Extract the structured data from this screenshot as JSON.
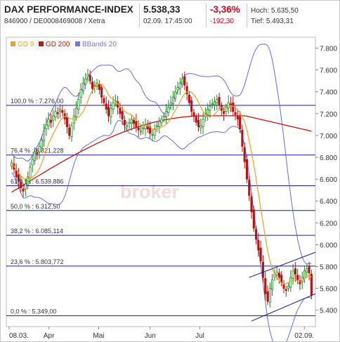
{
  "header": {
    "title": "DAX PERFORMANCE-INDEX",
    "subtitle": "846900 / DE0008469008 / Xetra",
    "price": "5.538,33",
    "datetime": "02.09. 17:45:00",
    "change_pct": "-3,36%",
    "change_abs": "-192,30",
    "high": "Hoch: 5.635,50",
    "low": "Tief: 5.493,31"
  },
  "legend": [
    {
      "label": "GD 9",
      "color": "#f0a020"
    },
    {
      "label": "GD 200",
      "color": "#cc1111"
    },
    {
      "label": "BBands 20",
      "color": "#7777dd"
    }
  ],
  "watermark": "broker",
  "colors": {
    "up": "#1f8a1f",
    "down": "#b81313",
    "fib": "#1a1a9a",
    "bband": "#6a6ad8",
    "ma9": "#f0a020",
    "ma200": "#cc1111"
  },
  "chart_data": {
    "type": "candlestick",
    "y_axis_side": "right",
    "ylim": [
      5250,
      7900
    ],
    "y_ticks": [
      "5.400",
      "5.600",
      "5.800",
      "6.000",
      "6.200",
      "6.400",
      "6.600",
      "6.800",
      "7.000",
      "7.200",
      "7.400",
      "7.600",
      "7.800"
    ],
    "y_tick_values": [
      5400,
      5600,
      5800,
      6000,
      6200,
      6400,
      6600,
      6800,
      7000,
      7200,
      7400,
      7600,
      7800
    ],
    "x_labels": [
      "08.03.",
      "Apr",
      "Mai",
      "Jun",
      "Jul",
      "02.09."
    ],
    "x_label_days": [
      0,
      24,
      54,
      85,
      115,
      178
    ],
    "total_days": 183,
    "fibonacci": [
      {
        "label": "100,0 % : 7.276,00",
        "value": 7276.0
      },
      {
        "label": "76,4 % : 6.821,228",
        "value": 6821.228
      },
      {
        "label": "61,8 % : 6.539,886",
        "value": 6539.886
      },
      {
        "label": "50,0 % : 6.312,50",
        "value": 6312.5
      },
      {
        "label": "38,2 % : 6.085,114",
        "value": 6085.114
      },
      {
        "label": "23,6 % : 5.803,772",
        "value": 5803.772
      },
      {
        "label": "0,0 % : 5.349,00",
        "value": 5349.0
      }
    ],
    "closes": [
      6750,
      6690,
      6620,
      6580,
      6520,
      6490,
      6555,
      6620,
      6710,
      6780,
      6850,
      6830,
      6900,
      6960,
      7040,
      7100,
      7150,
      7120,
      7180,
      7220,
      7200,
      7240,
      7210,
      7150,
      7080,
      7000,
      7090,
      7180,
      7250,
      7330,
      7420,
      7480,
      7520,
      7560,
      7500,
      7430,
      7460,
      7480,
      7420,
      7350,
      7300,
      7240,
      7180,
      7250,
      7300,
      7320,
      7260,
      7200,
      7150,
      7100,
      7090,
      7120,
      7150,
      7110,
      7080,
      7050,
      7040,
      7070,
      7100,
      7060,
      7020,
      7010,
      7060,
      7090,
      7130,
      7150,
      7180,
      7220,
      7260,
      7300,
      7350,
      7400,
      7440,
      7480,
      7520,
      7460,
      7380,
      7300,
      7220,
      7180,
      7120,
      7080,
      7090,
      7150,
      7200,
      7240,
      7270,
      7290,
      7310,
      7330,
      7280,
      7230,
      7200,
      7260,
      7300,
      7280,
      7220,
      7190,
      7150,
      7060,
      6900,
      6760,
      6600,
      6450,
      6300,
      6150,
      6050,
      5950,
      5850,
      5700,
      5550,
      5480,
      5600,
      5680,
      5730,
      5750,
      5700,
      5650,
      5600,
      5580,
      5620,
      5700,
      5760,
      5730,
      5680,
      5640,
      5700,
      5760,
      5780,
      5740,
      5538
    ]
  }
}
